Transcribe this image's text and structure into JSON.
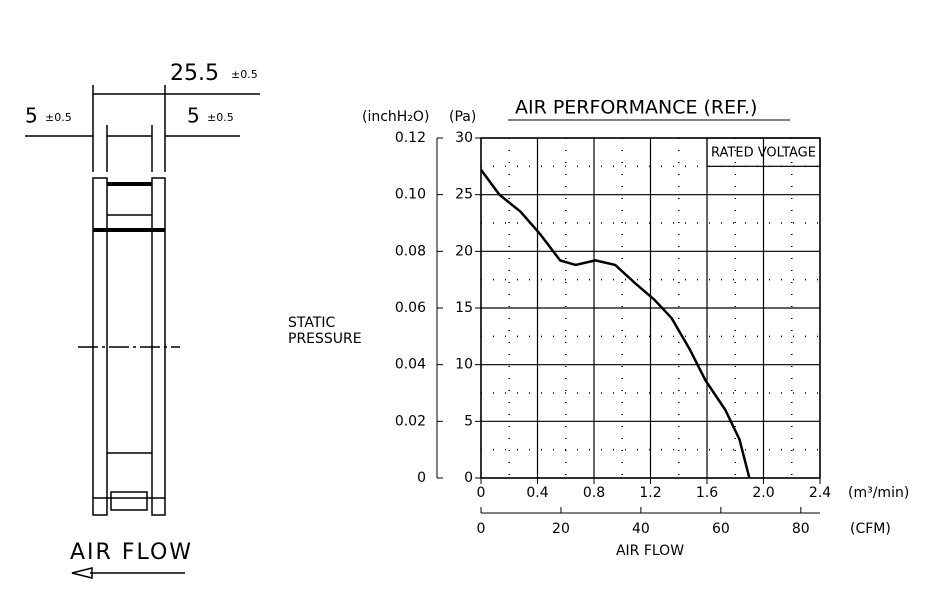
{
  "drawing": {
    "dimension_total": "25.5",
    "tolerance_total": "±0.5",
    "dimension_left": "5",
    "tolerance_left": "±0.5",
    "dimension_right": "5",
    "tolerance_right": "±0.5",
    "air_flow_label": "AIR FLOW"
  },
  "chart_data": {
    "type": "line",
    "title": "AIR PERFORMANCE (REF.)",
    "annotation": "RATED VOLTAGE",
    "y_label": "STATIC PRESSURE",
    "y_unit": "(Pa)",
    "y2_unit": "(inchH₂O)",
    "x_unit": "(m³/min)",
    "x2_unit": "(CFM)",
    "x_label": "AIR FLOW",
    "x": [
      0,
      0.13,
      0.28,
      0.42,
      0.56,
      0.67,
      0.81,
      0.95,
      1.09,
      1.23,
      1.35,
      1.48,
      1.59,
      1.73,
      1.83,
      1.9
    ],
    "series": [
      {
        "color": "#000000",
        "values": [
          27.2,
          25,
          23.5,
          21.5,
          19.2,
          18.8,
          19.2,
          18.8,
          17.2,
          15.7,
          14.1,
          11.3,
          8.6,
          6,
          3.4,
          0
        ]
      }
    ],
    "xlim": [
      0,
      2.4
    ],
    "xticks": [
      0,
      0.4,
      0.8,
      1.2,
      1.6,
      {
        "value": 2,
        "label": "2.0"
      },
      2.4
    ],
    "x2lim": [
      0,
      84.8
    ],
    "x2ticks": [
      0,
      20,
      40,
      60,
      80
    ],
    "ylim": [
      0,
      30
    ],
    "yticks": [
      0,
      5,
      10,
      15,
      20,
      25,
      30
    ],
    "y2lim": [
      0,
      0.12
    ],
    "y2ticks": [
      0,
      0.02,
      0.04,
      0.06,
      0.08,
      {
        "value": 0.1,
        "label": "0.10"
      },
      0.12
    ],
    "grid": true
  }
}
